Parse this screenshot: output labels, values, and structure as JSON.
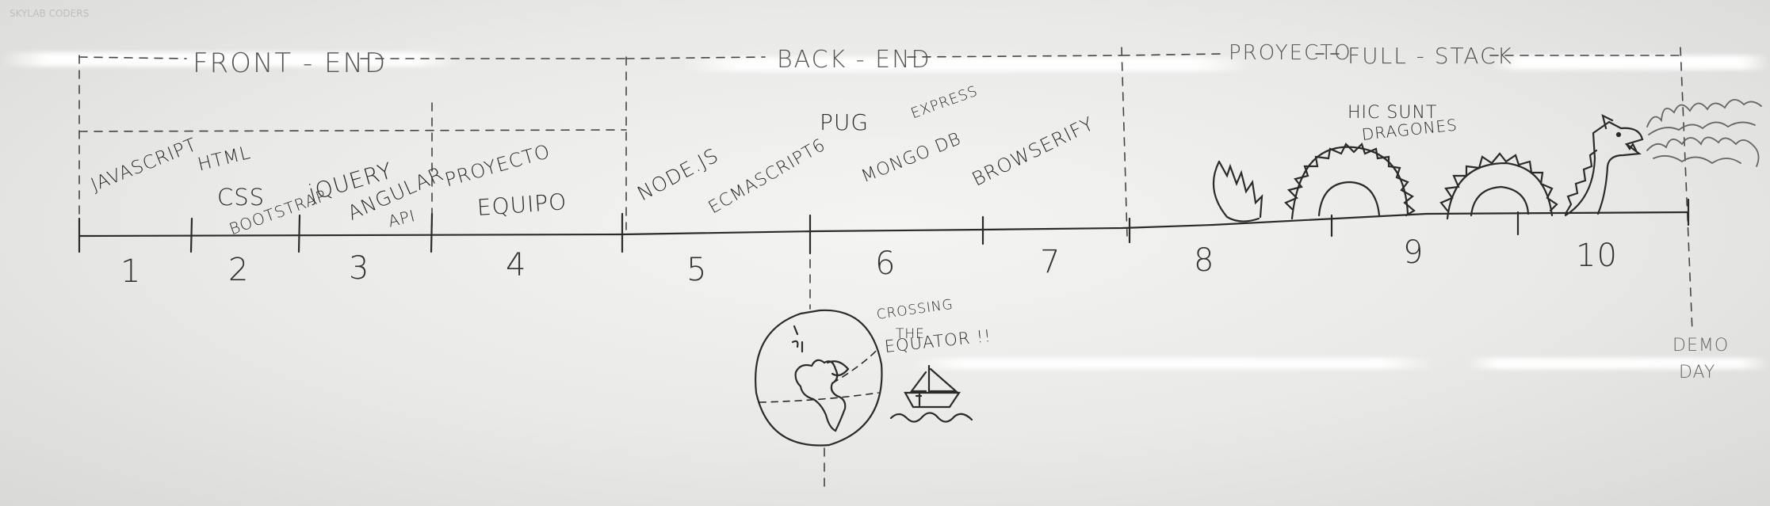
{
  "watermark": "SKYLAB CODERS",
  "phases": {
    "front_end": "FRONT - END",
    "back_end": "BACK - END",
    "proyecto": "PROYECTO",
    "full_stack": "FULL - STACK"
  },
  "topics": {
    "javascript": "JAVASCRIPT",
    "html": "HTML",
    "css": "CSS",
    "bootstrap": "BOOTSTRAP",
    "jquery": "jQUERY",
    "angular": "ANGULAR",
    "api": "API",
    "proyecto": "PROYECTO",
    "equipo": "EQUIPO",
    "nodejs": "NODE.JS",
    "ecmascript6": "ECMASCRIPT6",
    "pug": "PUG",
    "express": "EXPRESS",
    "mongodb": "MONGO DB",
    "browserify": "BROWSERIFY"
  },
  "weeks": [
    "1",
    "2",
    "3",
    "4",
    "5",
    "6",
    "7",
    "8",
    "9",
    "10"
  ],
  "annotations": {
    "hic_sunt": "HIC SUNT",
    "dragones": "DRAGONES",
    "crossing": "CROSSING",
    "the": "THE",
    "equator": "EQUATOR !!",
    "demo": "DEMO",
    "day": "DAY"
  },
  "colors": {
    "marker": "#2b2b2b",
    "board": "#eeeeec",
    "faded_text": "#555555"
  },
  "icons": [
    "globe-icon",
    "sailboat-icon",
    "sea-serpent-icon",
    "dragon-head-icon",
    "flame-icon"
  ]
}
